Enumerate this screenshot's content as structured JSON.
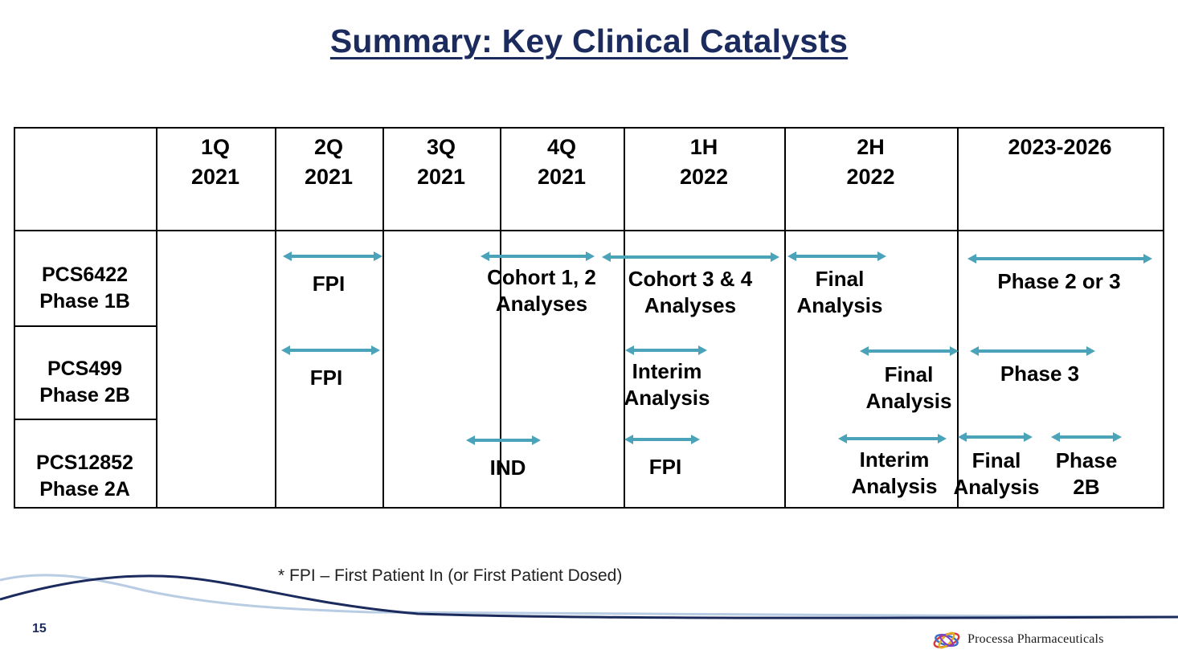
{
  "title": "Summary: Key Clinical Catalysts",
  "columns": [
    {
      "line1": "1Q",
      "line2": "2021"
    },
    {
      "line1": "2Q",
      "line2": "2021"
    },
    {
      "line1": "3Q",
      "line2": "2021"
    },
    {
      "line1": "4Q",
      "line2": "2021"
    },
    {
      "line1": "1H",
      "line2": "2022"
    },
    {
      "line1": "2H",
      "line2": "2022"
    },
    {
      "line1": "2023-2026",
      "line2": ""
    }
  ],
  "rows": [
    {
      "name": "PCS6422",
      "phase": "Phase 1B"
    },
    {
      "name": "PCS499",
      "phase": "Phase 2B"
    },
    {
      "name": "PCS12852",
      "phase": "Phase 2A"
    }
  ],
  "events": [
    {
      "id": "pcs6422-fpi",
      "label": "FPI"
    },
    {
      "id": "pcs6422-cohort12",
      "label": "Cohort 1, 2\nAnalyses"
    },
    {
      "id": "pcs6422-cohort34",
      "label": "Cohort 3 & 4\nAnalyses"
    },
    {
      "id": "pcs6422-final",
      "label": "Final\nAnalysis"
    },
    {
      "id": "pcs6422-phase23",
      "label": "Phase 2 or 3"
    },
    {
      "id": "pcs499-fpi",
      "label": "FPI"
    },
    {
      "id": "pcs499-interim",
      "label": "Interim\nAnalysis"
    },
    {
      "id": "pcs499-final",
      "label": "Final\nAnalysis"
    },
    {
      "id": "pcs499-phase3",
      "label": "Phase 3"
    },
    {
      "id": "pcs12852-ind",
      "label": "IND"
    },
    {
      "id": "pcs12852-fpi",
      "label": "FPI"
    },
    {
      "id": "pcs12852-interim",
      "label": "Interim\nAnalysis"
    },
    {
      "id": "pcs12852-final",
      "label": "Final\nAnalysis"
    },
    {
      "id": "pcs12852-phase2b",
      "label": "Phase\n2B"
    }
  ],
  "footnote": "* FPI – First Patient In (or First Patient Dosed)",
  "page_number": "15",
  "logo_text": "Processa Pharmaceuticals",
  "colors": {
    "title": "#1c2b5e",
    "arrow": "#4aa3b8",
    "wave_dark": "#1c2b5e",
    "wave_light": "#b8cde3"
  }
}
